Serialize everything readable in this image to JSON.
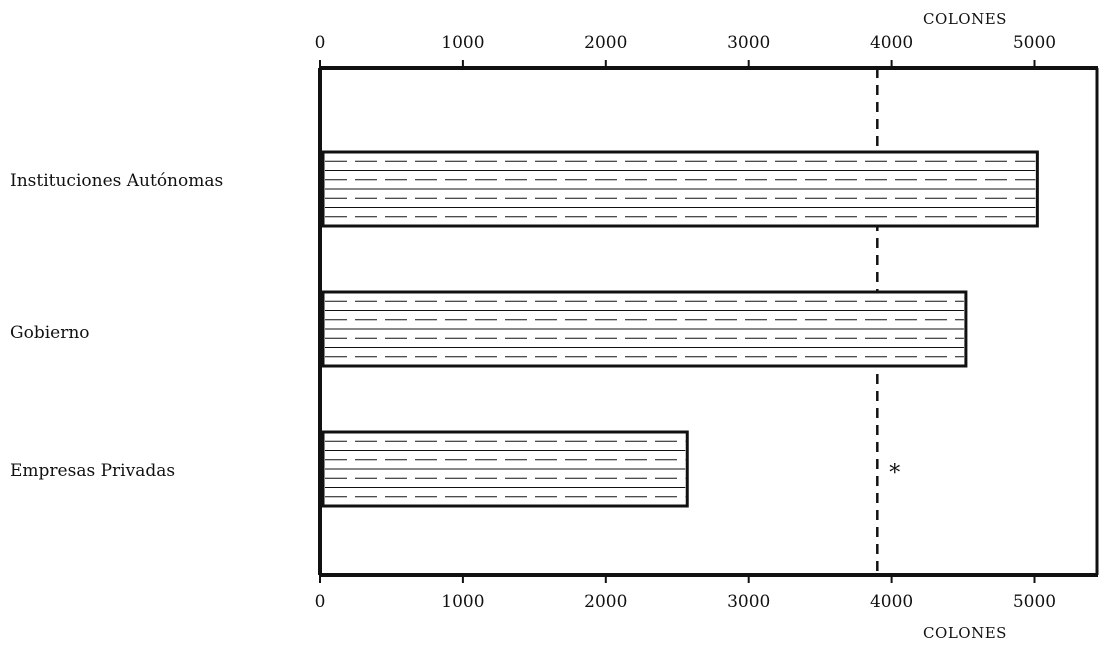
{
  "chart_data": {
    "type": "bar",
    "orientation": "horizontal",
    "categories": [
      "Instituciones Autónomas",
      "Gobierno",
      "Empresas Privadas"
    ],
    "values": [
      5020,
      4520,
      2570
    ],
    "xlim": [
      0,
      5400
    ],
    "x_ticks": [
      "0",
      "1000",
      "2000",
      "3000",
      "4000",
      "5000"
    ],
    "x_tick_values": [
      0,
      1000,
      2000,
      3000,
      4000,
      5000
    ],
    "x_unit_top": "COLONES",
    "x_unit_bottom": "COLONES",
    "reference_line": {
      "value": 3900,
      "style": "dashed",
      "marker": "*"
    },
    "bar_fill": "horizontal solid and dashed lines",
    "grid": false,
    "colors": {
      "ink": "#111111",
      "background": "#ffffff"
    }
  }
}
